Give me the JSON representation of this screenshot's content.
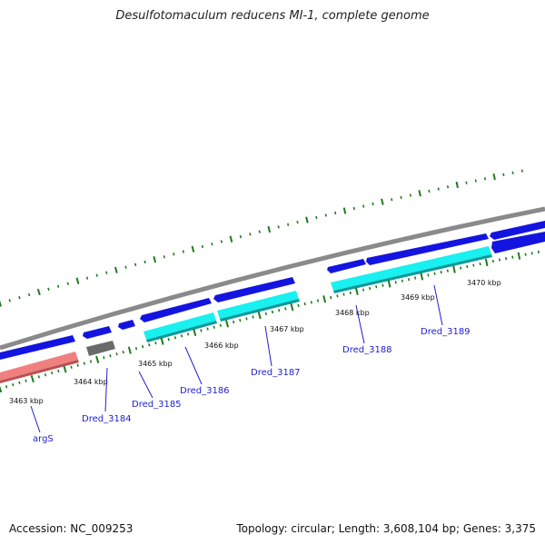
{
  "title": "Desulfotomaculum reducens MI-1, complete genome",
  "footer": {
    "accession": "Accession: NC_009253",
    "stats": "Topology: circular; Length: 3,608,104 bp; Genes: 3,375"
  },
  "colors": {
    "backbone": "#8a8a8a",
    "forward_gene": "#1414e0",
    "reverse_gene": "#1414e0",
    "cds_cyan": "#19f0f0",
    "cds_gray": "#6a6a6a",
    "cds_pink": "#f08080",
    "tick": "#1f7a1f",
    "label_line": "#2020d0"
  },
  "ticks": [
    {
      "label": "3463 kbp"
    },
    {
      "label": "3464 kbp"
    },
    {
      "label": "3465 kbp"
    },
    {
      "label": "3466 kbp"
    },
    {
      "label": "3467 kbp"
    },
    {
      "label": "3468 kbp"
    },
    {
      "label": "3469 kbp"
    },
    {
      "label": "3470 kbp"
    }
  ],
  "genes": [
    {
      "label": "argS"
    },
    {
      "label": "Dred_3184"
    },
    {
      "label": "Dred_3185"
    },
    {
      "label": "Dred_3186"
    },
    {
      "label": "Dred_3187"
    },
    {
      "label": "Dred_3188"
    },
    {
      "label": "Dred_3189"
    }
  ]
}
